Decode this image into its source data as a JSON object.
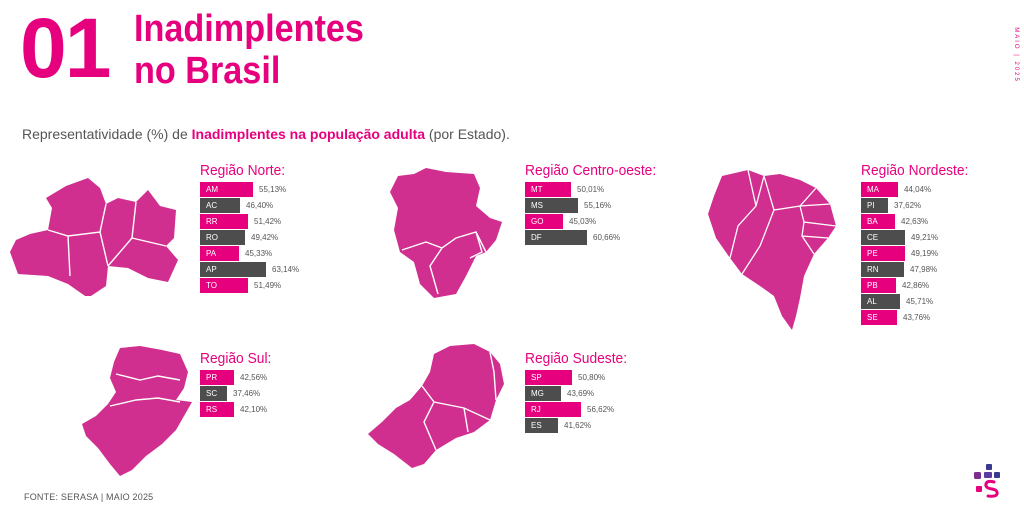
{
  "header": {
    "number": "01",
    "title_line1": "Inadimplentes",
    "title_line2": "no Brasil",
    "side_label": "MAIO | 2025"
  },
  "subtitle": {
    "prefix": "Representatividade (%) de ",
    "highlight": "Inadimplentes na população adulta",
    "suffix": " (por Estado)."
  },
  "source": "FONTE: SERASA | MAIO 2025",
  "colors": {
    "pink": "#e6007e",
    "dark": "#4d4d4d",
    "map": "#d12f8f"
  },
  "icons": [
    "serasa-logo-icon"
  ],
  "chart_data": [
    {
      "type": "bar",
      "title": "Região Norte:",
      "categories": [
        "AM",
        "AC",
        "RR",
        "RO",
        "PA",
        "AP",
        "TO"
      ],
      "values": [
        55.13,
        46.4,
        51.42,
        49.42,
        45.33,
        63.14,
        51.49
      ],
      "labels": [
        "55,13%",
        "46,40%",
        "51,42%",
        "49,42%",
        "45,33%",
        "63,14%",
        "51,49%"
      ],
      "colors": [
        "pink",
        "dark",
        "pink",
        "dark",
        "pink",
        "dark",
        "pink"
      ]
    },
    {
      "type": "bar",
      "title": "Região Centro-oeste:",
      "categories": [
        "MT",
        "MS",
        "GO",
        "DF"
      ],
      "values": [
        50.01,
        55.16,
        45.03,
        60.66
      ],
      "labels": [
        "50,01%",
        "55,16%",
        "45,03%",
        "60,66%"
      ],
      "colors": [
        "pink",
        "dark",
        "pink",
        "dark"
      ]
    },
    {
      "type": "bar",
      "title": "Região Nordeste:",
      "categories": [
        "MA",
        "PI",
        "BA",
        "CE",
        "PE",
        "RN",
        "PB",
        "AL",
        "SE"
      ],
      "values": [
        44.04,
        37.62,
        42.63,
        49.21,
        49.19,
        47.98,
        42.86,
        45.71,
        43.76
      ],
      "labels": [
        "44,04%",
        "37,62%",
        "42,63%",
        "49,21%",
        "49,19%",
        "47,98%",
        "42,86%",
        "45,71%",
        "43,76%"
      ],
      "colors": [
        "pink",
        "dark",
        "pink",
        "dark",
        "pink",
        "dark",
        "pink",
        "dark",
        "pink"
      ]
    },
    {
      "type": "bar",
      "title": "Região Sul:",
      "categories": [
        "PR",
        "SC",
        "RS"
      ],
      "values": [
        42.56,
        37.46,
        42.1
      ],
      "labels": [
        "42,56%",
        "37,46%",
        "42,10%"
      ],
      "colors": [
        "pink",
        "dark",
        "pink"
      ]
    },
    {
      "type": "bar",
      "title": "Região Sudeste:",
      "categories": [
        "SP",
        "MG",
        "RJ",
        "ES"
      ],
      "values": [
        50.8,
        43.69,
        56.62,
        41.62
      ],
      "labels": [
        "50,80%",
        "43,69%",
        "56,62%",
        "41,62%"
      ],
      "colors": [
        "pink",
        "dark",
        "pink",
        "dark"
      ]
    }
  ]
}
